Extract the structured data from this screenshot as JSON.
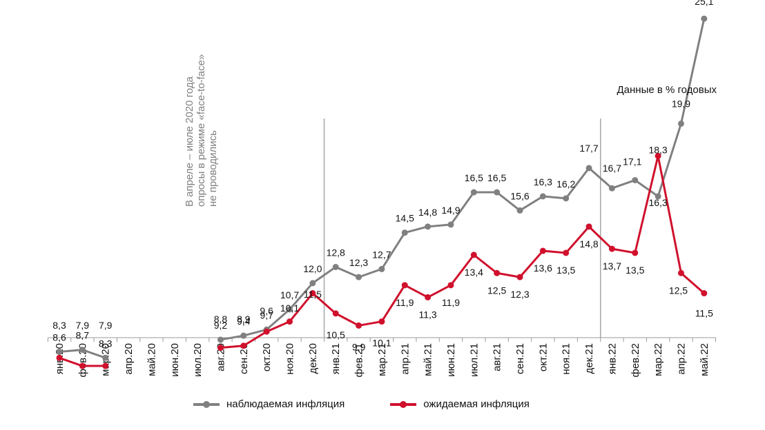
{
  "unit_note": "Данные в % годовых",
  "gap_note": [
    "В апреле – июле 2020 года",
    "опросы в режиме «face-to-face»",
    "не проводились"
  ],
  "colors": {
    "observed": "#808080",
    "expected": "#d0102c",
    "axis": "#999999",
    "divider": "#a6a6a6"
  },
  "chart_data": {
    "type": "line",
    "categories": [
      "янв.20",
      "фев.20",
      "мар.20",
      "апр.20",
      "май.20",
      "июн.20",
      "июл.20",
      "авг.20",
      "сен.20",
      "окт.20",
      "ноя.20",
      "дек.20",
      "янв.21",
      "фев.21",
      "мар.21",
      "апр.21",
      "май.21",
      "июн.21",
      "июл.21",
      "авг.21",
      "сен.21",
      "окт.21",
      "ноя.21",
      "дек.21",
      "янв.22",
      "фев.22",
      "мар.22",
      "апр.22",
      "май.22"
    ],
    "series": [
      {
        "name": "наблюдаемая инфляция",
        "color": "#808080",
        "values": [
          8.6,
          8.7,
          8.3,
          null,
          null,
          null,
          null,
          9.2,
          9.4,
          9.7,
          10.7,
          12.0,
          12.8,
          12.3,
          12.7,
          14.5,
          14.8,
          14.9,
          16.5,
          16.5,
          15.6,
          16.3,
          16.2,
          17.7,
          16.7,
          17.1,
          16.3,
          19.9,
          25.1
        ],
        "labels": [
          "8,6",
          "8,7",
          "8,3",
          null,
          null,
          null,
          null,
          "9,2",
          "9,4",
          "9,7",
          "10,7",
          "12,0",
          "12,8",
          "12,3",
          "12,7",
          "14,5",
          "14,8",
          "14,9",
          "16,5",
          "16,5",
          "15,6",
          "16,3",
          "16,2",
          "17,7",
          "16,7",
          "17,1",
          "16,3",
          "19,9",
          "25,1"
        ]
      },
      {
        "name": "ожидаемая инфляция",
        "color": "#d0102c",
        "values": [
          8.3,
          7.9,
          7.9,
          null,
          null,
          null,
          null,
          8.8,
          8.9,
          9.6,
          10.1,
          11.5,
          10.5,
          9.9,
          10.1,
          11.9,
          11.3,
          11.9,
          13.4,
          12.5,
          12.3,
          13.6,
          13.5,
          14.8,
          13.7,
          13.5,
          18.3,
          12.5,
          11.5
        ],
        "labels": [
          "8,3",
          "7,9",
          "7,9",
          null,
          null,
          null,
          null,
          "8,8",
          "8,9",
          "9,6",
          "10,1",
          "11,5",
          "10,5",
          "9,9",
          "10,1",
          "11,9",
          "11,3",
          "11,9",
          "13,4",
          "12,5",
          "12,3",
          "13,6",
          "13,5",
          "14,8",
          "13,7",
          "13,5",
          "18,3",
          "12,5",
          "11,5"
        ]
      }
    ],
    "year_dividers_after": [
      "дек.20",
      "дек.21"
    ]
  }
}
